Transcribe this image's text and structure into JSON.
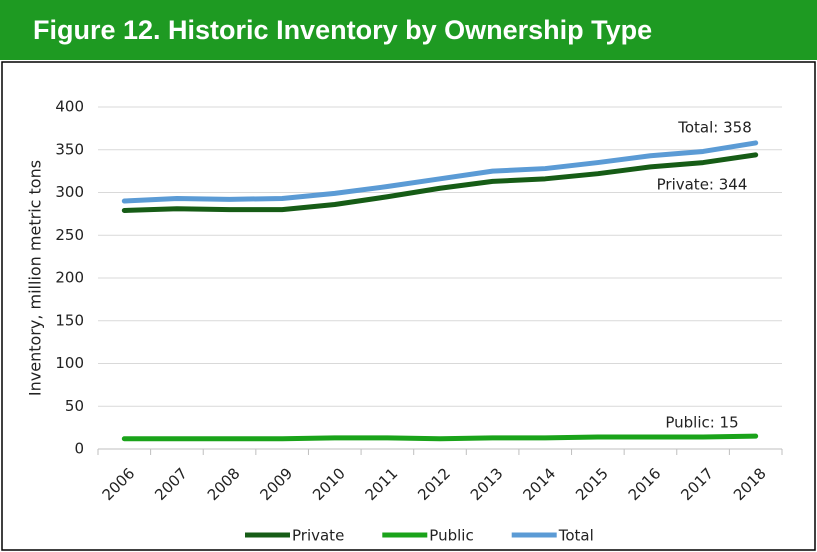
{
  "header": {
    "title": "Figure 12. Historic Inventory by Ownership Type"
  },
  "chart_data": {
    "type": "line",
    "y_label": "Inventory, million metric tons",
    "categories": [
      "2006",
      "2007",
      "2008",
      "2009",
      "2010",
      "2011",
      "2012",
      "2013",
      "2014",
      "2015",
      "2016",
      "2017",
      "2018"
    ],
    "series": [
      {
        "name": "Private",
        "color": "#165c16",
        "values": [
          279,
          281,
          280,
          280,
          286,
          295,
          305,
          313,
          316,
          322,
          330,
          335,
          344
        ]
      },
      {
        "name": "Public",
        "color": "#1aa31a",
        "values": [
          12,
          12,
          12,
          12,
          13,
          13,
          12,
          13,
          13,
          14,
          14,
          14,
          15
        ]
      },
      {
        "name": "Total",
        "color": "#5b9bd5",
        "values": [
          290,
          293,
          292,
          293,
          299,
          307,
          316,
          325,
          328,
          335,
          343,
          348,
          358
        ]
      }
    ],
    "annotations": [
      "Total: 358",
      "Private: 344",
      "Public: 15"
    ],
    "ylim": [
      0,
      400
    ],
    "yticks": [
      0,
      50,
      100,
      150,
      200,
      250,
      300,
      350,
      400
    ],
    "grid": true
  }
}
